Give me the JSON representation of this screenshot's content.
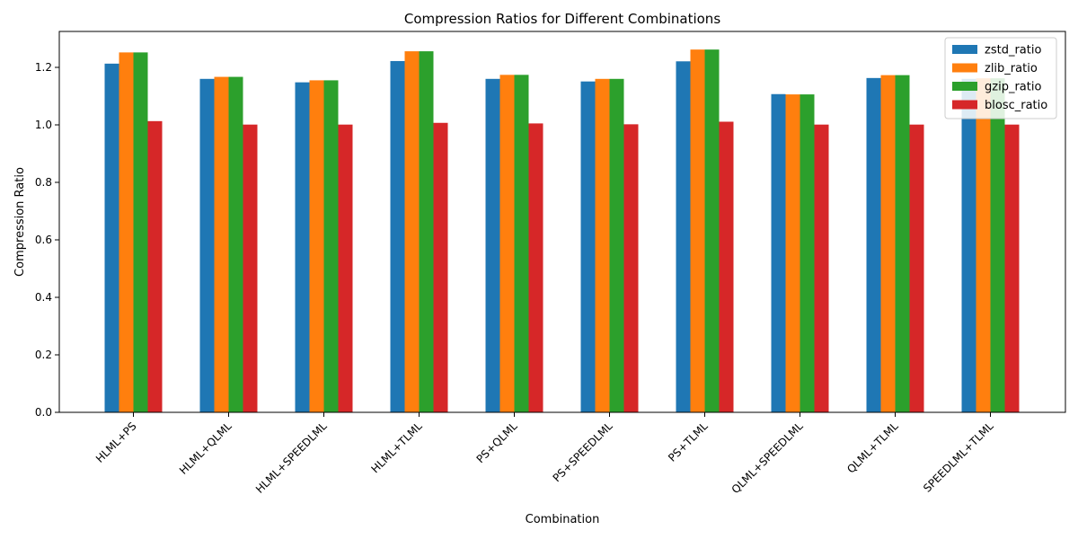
{
  "chart_data": {
    "type": "bar",
    "title": "Compression Ratios for Different Combinations",
    "xlabel": "Combination",
    "ylabel": "Compression Ratio",
    "ylim": [
      0,
      1.325
    ],
    "yticks": [
      "0.0",
      "0.2",
      "0.4",
      "0.6",
      "0.8",
      "1.0",
      "1.2"
    ],
    "ytick_values": [
      0.0,
      0.2,
      0.4,
      0.6,
      0.8,
      1.0,
      1.2
    ],
    "grid": false,
    "legend_position": "top-right",
    "categories": [
      "HLML+PS",
      "HLML+QLML",
      "HLML+SPEEDLML",
      "HLML+TLML",
      "PS+QLML",
      "PS+SPEEDLML",
      "PS+TLML",
      "QLML+SPEEDLML",
      "QLML+TLML",
      "SPEEDLML+TLML"
    ],
    "series": [
      {
        "name": "zstd_ratio",
        "color": "#1f77b4",
        "values": [
          1.213,
          1.16,
          1.148,
          1.222,
          1.16,
          1.151,
          1.221,
          1.107,
          1.163,
          1.16
        ]
      },
      {
        "name": "zlib_ratio",
        "color": "#ff7f0e",
        "values": [
          1.252,
          1.167,
          1.155,
          1.256,
          1.174,
          1.16,
          1.262,
          1.106,
          1.173,
          1.162
        ]
      },
      {
        "name": "gzip_ratio",
        "color": "#2ca02c",
        "values": [
          1.252,
          1.167,
          1.155,
          1.256,
          1.174,
          1.16,
          1.262,
          1.106,
          1.173,
          1.162
        ]
      },
      {
        "name": "blosc_ratio",
        "color": "#d62728",
        "values": [
          1.013,
          1.001,
          1.001,
          1.007,
          1.005,
          1.002,
          1.011,
          1.001,
          1.001,
          1.001
        ]
      }
    ]
  }
}
